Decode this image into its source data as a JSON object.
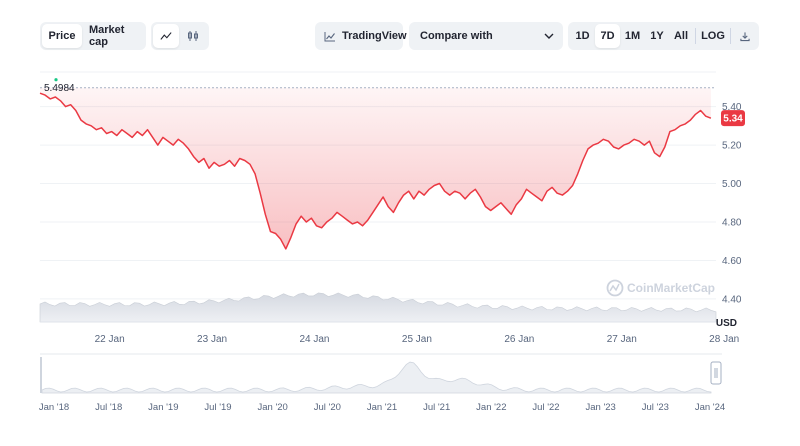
{
  "toolbar": {
    "price_label": "Price",
    "market_cap_label": "Market cap",
    "tradingview_label": "TradingView",
    "compare_label": "Compare with",
    "ranges": [
      "1D",
      "7D",
      "1M",
      "1Y",
      "All"
    ],
    "active_range": "7D",
    "log_label": "LOG"
  },
  "chart_data": {
    "type": "line",
    "ylabel": "USD",
    "y_ticks": [
      4.4,
      4.6,
      4.8,
      5.0,
      5.2,
      5.4
    ],
    "ylim": [
      4.28,
      5.58
    ],
    "x_ticks": [
      "22 Jan",
      "23 Jan",
      "24 Jan",
      "25 Jan",
      "26 Jan",
      "27 Jan",
      "28 Jan"
    ],
    "xlim": [
      0,
      6.6
    ],
    "open_price": 5.4984,
    "current_price": 5.34,
    "current_price_label": "5.34",
    "open_price_label": "5.4984",
    "line_color": "#ea3943",
    "series": [
      {
        "values": [
          [
            0.0,
            5.47
          ],
          [
            0.05,
            5.46
          ],
          [
            0.1,
            5.44
          ],
          [
            0.15,
            5.45
          ],
          [
            0.2,
            5.43
          ],
          [
            0.25,
            5.4
          ],
          [
            0.3,
            5.41
          ],
          [
            0.35,
            5.38
          ],
          [
            0.4,
            5.33
          ],
          [
            0.45,
            5.31
          ],
          [
            0.5,
            5.3
          ],
          [
            0.55,
            5.28
          ],
          [
            0.6,
            5.29
          ],
          [
            0.65,
            5.26
          ],
          [
            0.7,
            5.27
          ],
          [
            0.75,
            5.25
          ],
          [
            0.8,
            5.28
          ],
          [
            0.85,
            5.26
          ],
          [
            0.9,
            5.24
          ],
          [
            0.95,
            5.27
          ],
          [
            1.0,
            5.25
          ],
          [
            1.05,
            5.28
          ],
          [
            1.1,
            5.24
          ],
          [
            1.15,
            5.2
          ],
          [
            1.2,
            5.24
          ],
          [
            1.25,
            5.22
          ],
          [
            1.3,
            5.2
          ],
          [
            1.35,
            5.23
          ],
          [
            1.4,
            5.21
          ],
          [
            1.45,
            5.18
          ],
          [
            1.5,
            5.14
          ],
          [
            1.55,
            5.11
          ],
          [
            1.6,
            5.13
          ],
          [
            1.65,
            5.08
          ],
          [
            1.7,
            5.11
          ],
          [
            1.75,
            5.09
          ],
          [
            1.8,
            5.1
          ],
          [
            1.85,
            5.12
          ],
          [
            1.9,
            5.09
          ],
          [
            1.95,
            5.13
          ],
          [
            2.0,
            5.12
          ],
          [
            2.05,
            5.1
          ],
          [
            2.1,
            5.05
          ],
          [
            2.15,
            4.95
          ],
          [
            2.2,
            4.84
          ],
          [
            2.25,
            4.75
          ],
          [
            2.3,
            4.74
          ],
          [
            2.35,
            4.71
          ],
          [
            2.4,
            4.66
          ],
          [
            2.45,
            4.72
          ],
          [
            2.5,
            4.79
          ],
          [
            2.55,
            4.83
          ],
          [
            2.6,
            4.8
          ],
          [
            2.65,
            4.82
          ],
          [
            2.7,
            4.78
          ],
          [
            2.75,
            4.77
          ],
          [
            2.8,
            4.8
          ],
          [
            2.85,
            4.82
          ],
          [
            2.9,
            4.85
          ],
          [
            2.95,
            4.83
          ],
          [
            3.0,
            4.81
          ],
          [
            3.05,
            4.79
          ],
          [
            3.1,
            4.8
          ],
          [
            3.15,
            4.78
          ],
          [
            3.2,
            4.81
          ],
          [
            3.25,
            4.85
          ],
          [
            3.3,
            4.89
          ],
          [
            3.35,
            4.93
          ],
          [
            3.4,
            4.88
          ],
          [
            3.45,
            4.85
          ],
          [
            3.5,
            4.9
          ],
          [
            3.55,
            4.94
          ],
          [
            3.6,
            4.96
          ],
          [
            3.65,
            4.92
          ],
          [
            3.7,
            4.96
          ],
          [
            3.75,
            4.94
          ],
          [
            3.8,
            4.97
          ],
          [
            3.85,
            4.99
          ],
          [
            3.9,
            5.0
          ],
          [
            3.95,
            4.96
          ],
          [
            4.0,
            4.94
          ],
          [
            4.05,
            4.96
          ],
          [
            4.1,
            4.95
          ],
          [
            4.15,
            4.92
          ],
          [
            4.2,
            4.95
          ],
          [
            4.25,
            4.97
          ],
          [
            4.3,
            4.93
          ],
          [
            4.35,
            4.88
          ],
          [
            4.4,
            4.86
          ],
          [
            4.45,
            4.88
          ],
          [
            4.5,
            4.9
          ],
          [
            4.55,
            4.87
          ],
          [
            4.6,
            4.84
          ],
          [
            4.65,
            4.89
          ],
          [
            4.7,
            4.92
          ],
          [
            4.75,
            4.97
          ],
          [
            4.8,
            4.95
          ],
          [
            4.85,
            4.93
          ],
          [
            4.9,
            4.91
          ],
          [
            4.95,
            4.96
          ],
          [
            5.0,
            4.98
          ],
          [
            5.05,
            4.95
          ],
          [
            5.1,
            4.94
          ],
          [
            5.15,
            4.96
          ],
          [
            5.2,
            4.99
          ],
          [
            5.25,
            5.05
          ],
          [
            5.3,
            5.12
          ],
          [
            5.35,
            5.18
          ],
          [
            5.4,
            5.2
          ],
          [
            5.45,
            5.21
          ],
          [
            5.5,
            5.23
          ],
          [
            5.55,
            5.22
          ],
          [
            5.6,
            5.19
          ],
          [
            5.65,
            5.18
          ],
          [
            5.7,
            5.2
          ],
          [
            5.75,
            5.21
          ],
          [
            5.8,
            5.23
          ],
          [
            5.85,
            5.22
          ],
          [
            5.9,
            5.2
          ],
          [
            5.95,
            5.22
          ],
          [
            6.0,
            5.16
          ],
          [
            6.05,
            5.14
          ],
          [
            6.1,
            5.19
          ],
          [
            6.15,
            5.27
          ],
          [
            6.2,
            5.28
          ],
          [
            6.25,
            5.3
          ],
          [
            6.3,
            5.31
          ],
          [
            6.35,
            5.33
          ],
          [
            6.4,
            5.36
          ],
          [
            6.45,
            5.38
          ],
          [
            6.5,
            5.35
          ],
          [
            6.55,
            5.34
          ]
        ]
      }
    ],
    "watermark": "CoinMarketCap",
    "navigator_ticks": [
      "Jan '18",
      "Jul '18",
      "Jan '19",
      "Jul '19",
      "Jan '20",
      "Jul '20",
      "Jan '21",
      "Jul '21",
      "Jan '22",
      "Jul '22",
      "Jan '23",
      "Jul '23",
      "Jan '24"
    ]
  }
}
